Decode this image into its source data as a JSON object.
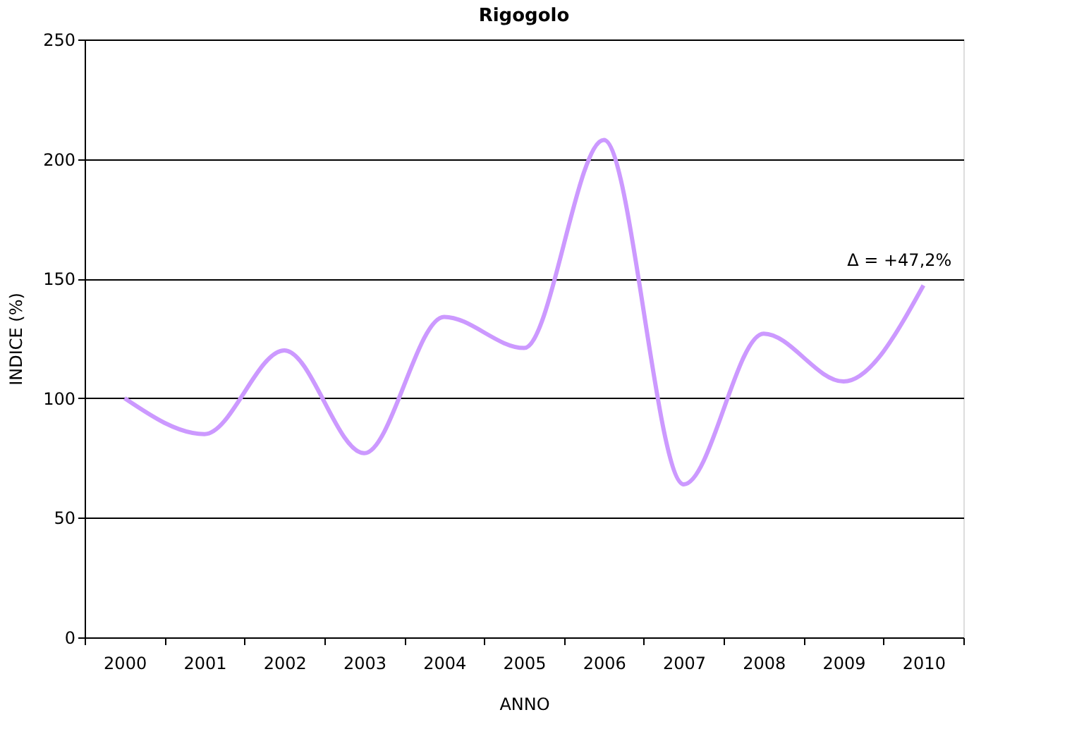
{
  "chart_data": {
    "type": "line",
    "title": "Rigogolo",
    "xlabel": "ANNO",
    "ylabel": "INDICE (%)",
    "categories": [
      "2000",
      "2001",
      "2002",
      "2003",
      "2004",
      "2005",
      "2006",
      "2007",
      "2008",
      "2009",
      "2010"
    ],
    "series": [
      {
        "color": "#cc99ff",
        "values": [
          100,
          85,
          120,
          77,
          134,
          121,
          208,
          64,
          127,
          107,
          147.2
        ]
      }
    ],
    "ylim": [
      0,
      250
    ],
    "yticks": [
      0,
      50,
      100,
      150,
      200,
      250
    ],
    "grid": "y",
    "marker": "none",
    "line_style": "solid",
    "annotations": [
      {
        "text": "Δ = +47,2%",
        "x": "2010",
        "y": 147.2
      }
    ]
  }
}
